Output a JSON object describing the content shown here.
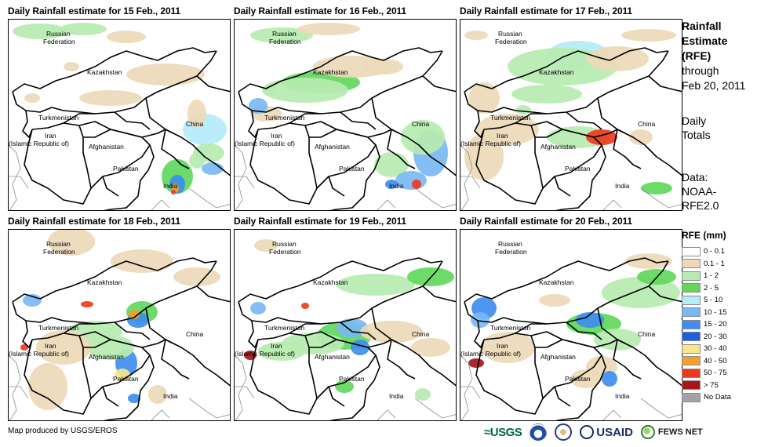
{
  "panels": [
    {
      "title": "Daily Rainfall estimate for 15 Feb., 2011"
    },
    {
      "title": "Daily Rainfall estimate for 16 Feb., 2011"
    },
    {
      "title": "Daily Rainfall estimate for 17 Feb., 2011"
    },
    {
      "title": "Daily Rainfall estimate for 18 Feb., 2011"
    },
    {
      "title": "Daily Rainfall estimate for 19 Feb., 2011"
    },
    {
      "title": "Daily Rainfall estimate for 20 Feb., 2011"
    }
  ],
  "place_labels": {
    "russia_1": "Russian",
    "russia_2": "Federation",
    "kazakhstan": "Kazakhstan",
    "turkmenistan": "Turkmenistan",
    "iran_1": "Iran",
    "iran_2": "(Islamic Republic of)",
    "afghanistan": "Afghanistan",
    "pakistan": "Pakistan",
    "india": "India",
    "china": "China"
  },
  "side_panel": {
    "title_1": "Rainfall",
    "title_2": "Estimate",
    "title_3": "(RFE)",
    "through_1": "through",
    "through_2": "Feb 20, 2011",
    "totals_1": "Daily",
    "totals_2": "Totals",
    "data_1": "Data:",
    "data_2": "NOAA-",
    "data_3": "RFE2.0"
  },
  "legend": {
    "title": "RFE (mm)",
    "items": [
      {
        "label": "0 - 0.1",
        "color": "#ffffff"
      },
      {
        "label": "0.1 - 1",
        "color": "#ecd9b8"
      },
      {
        "label": "1 - 2",
        "color": "#b7ecb0"
      },
      {
        "label": "2 - 5",
        "color": "#5fd85c"
      },
      {
        "label": "5 - 10",
        "color": "#b4ecf8"
      },
      {
        "label": "10 - 15",
        "color": "#7ab8f4"
      },
      {
        "label": "15 - 20",
        "color": "#3e8ef0"
      },
      {
        "label": "20 - 30",
        "color": "#1c5fe0"
      },
      {
        "label": "30 - 40",
        "color": "#f8e68a"
      },
      {
        "label": "40 - 50",
        "color": "#f2a22c"
      },
      {
        "label": "50 - 75",
        "color": "#ee3a1c"
      },
      {
        "label": "> 75",
        "color": "#a8161c"
      },
      {
        "label": "No Data",
        "color": "#a3a3a3"
      }
    ]
  },
  "footer": {
    "credit": "Map produced by USGS/EROS",
    "logo_usgs": "≈USGS",
    "logo_usaid": "USAID",
    "logo_fews": "FEWS NET"
  }
}
